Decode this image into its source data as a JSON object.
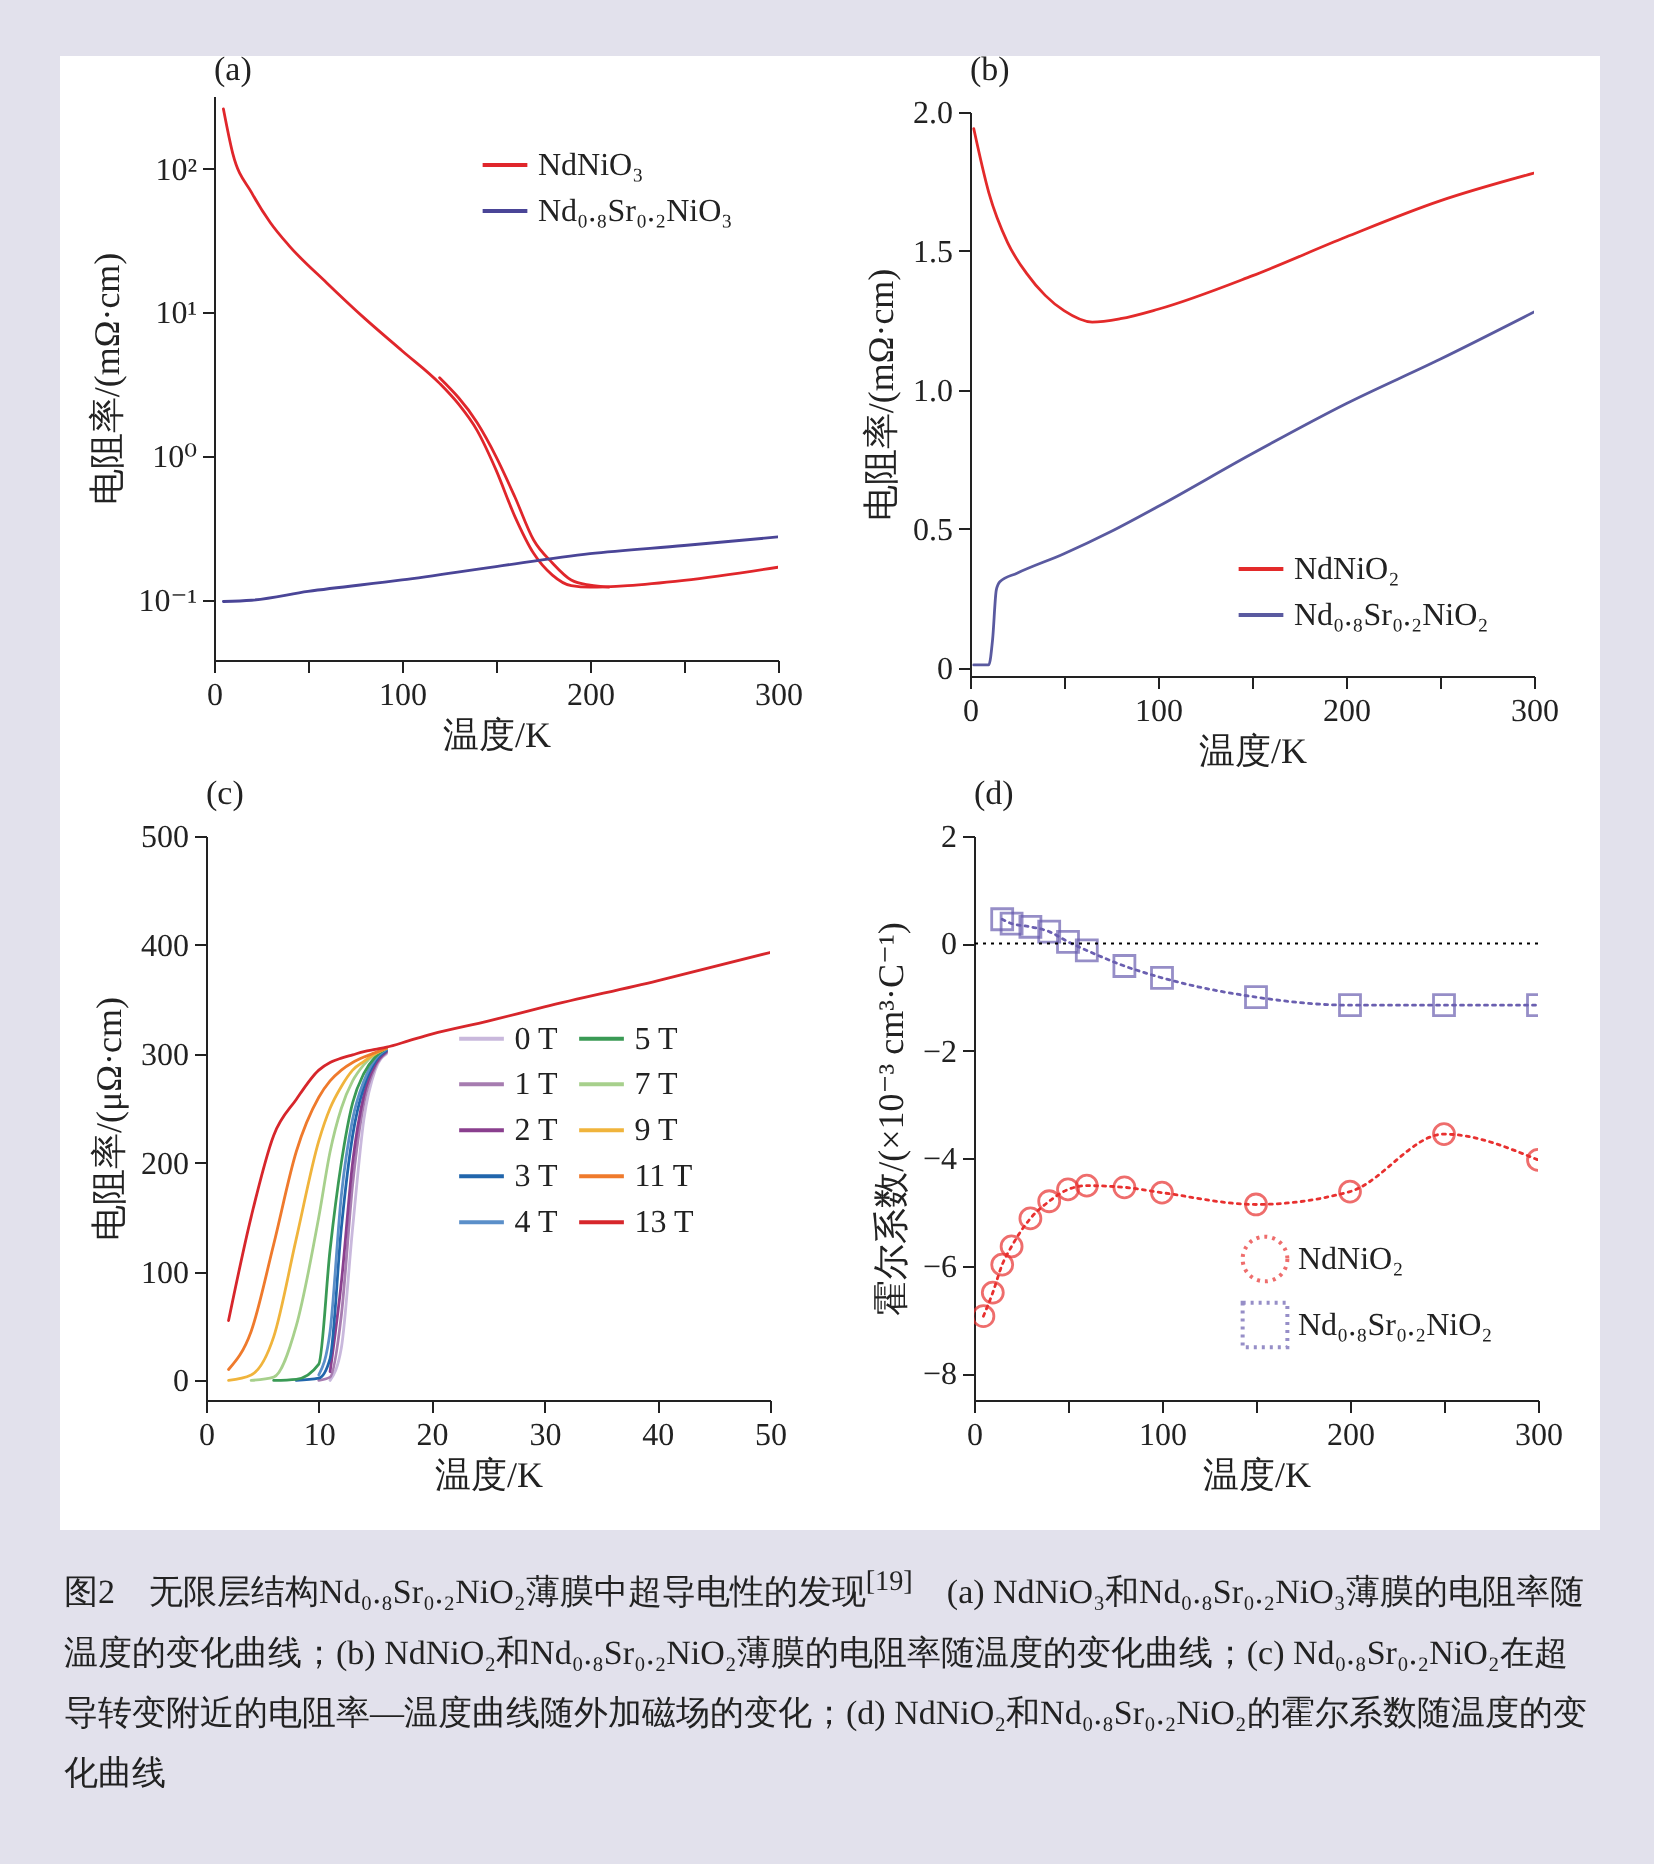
{
  "chart_data": [
    {
      "type": "line",
      "title": "(a)",
      "xlabel": "温度/K",
      "ylabel": "电阻率/(mΩ·cm)",
      "log": "y",
      "legend": "top right",
      "grid": false,
      "xlim": [
        0,
        300
      ],
      "xticks": [
        0,
        {
          "value": 50,
          "label": null
        },
        100,
        {
          "value": 150,
          "label": null
        },
        200,
        {
          "value": 250,
          "label": null
        },
        300
      ],
      "ylim": [
        0.038,
        320
      ],
      "yticks": [
        {
          "value": 100,
          "label": "10²"
        },
        {
          "value": 10,
          "label": "10¹"
        },
        {
          "value": 1,
          "label": "10⁰"
        },
        {
          "value": 0.1,
          "label": "10⁻¹"
        }
      ],
      "series": [
        {
          "name": "NdNiO₃",
          "color": "#e0262b",
          "x": [
            5,
            10,
            20,
            30,
            40,
            60,
            80,
            100,
            120,
            130,
            140,
            150,
            160,
            170,
            180,
            190,
            200,
            220,
            250,
            300
          ],
          "values": [
            260,
            127,
            68,
            42,
            29,
            16,
            9.1,
            5.4,
            3.2,
            2.3,
            1.5,
            0.8,
            0.38,
            0.21,
            0.148,
            0.125,
            0.122,
            0.125,
            0.136,
            0.168
          ]
        },
        {
          "color": "#e0262b",
          "x": [
            120,
            140,
            150,
            160,
            170,
            180,
            190,
            200,
            210
          ],
          "values": [
            3.5,
            1.7,
            0.99,
            0.52,
            0.26,
            0.18,
            0.137,
            0.126,
            0.122
          ]
        },
        {
          "name": "Nd₀.₈Sr₀.₂NiO₃",
          "color": "#4a4597",
          "x": [
            5,
            20,
            50,
            100,
            150,
            200,
            250,
            300
          ],
          "values": [
            0.097,
            0.099,
            0.114,
            0.137,
            0.17,
            0.209,
            0.238,
            0.273
          ]
        }
      ],
      "annotations": [
        "图2　无限层结构Nd₀.₈Sr₀.₂NiO₂薄膜中超导电性的发现$^{[19]}$　(a) NdNiO₃和Nd₀.₈Sr₀.₂NiO₃薄膜的电阻率随温度的变化曲线；(b) NdNiO₂和Nd₀.₈Sr₀.₂NiO₂薄膜的电阻率随温度的变化曲线；(c) Nd₀.₈Sr₀.₂NiO₂在超导转变附近的电阻率—温度曲线随外加磁场的变化；(d) NdNiO₂和Nd₀.₈Sr₀.₂NiO₂的霍尔系数随温度的变化曲线"
      ]
    },
    {
      "type": "line",
      "title": "(b)",
      "xlabel": "温度/K",
      "ylabel": "电阻率/(mΩ·cm)",
      "legend": "bottom right",
      "grid": false,
      "xlim": [
        0,
        300
      ],
      "xticks": [
        0,
        {
          "value": 50,
          "label": null
        },
        100,
        {
          "value": 150,
          "label": null
        },
        200,
        {
          "value": 250,
          "label": null
        },
        300
      ],
      "ylim": [
        -0.03,
        2.0
      ],
      "yticks": [
        0,
        0.5,
        {
          "value": 1,
          "label": "1.0"
        },
        1.5,
        {
          "value": 2,
          "label": "2.0"
        }
      ],
      "series": [
        {
          "name": "NdNiO₂",
          "color": "#e32a2a",
          "x": [
            2,
            10,
            20,
            30,
            40,
            50,
            65,
            80,
            100,
            150,
            200,
            250,
            300
          ],
          "values": [
            1.94,
            1.71,
            1.53,
            1.42,
            1.34,
            1.285,
            1.244,
            1.256,
            1.29,
            1.41,
            1.55,
            1.68,
            1.78
          ]
        },
        {
          "name": "Nd₀.₈Sr₀.₂NiO₂",
          "color": "#5a5aa0",
          "x": [
            2,
            10,
            12,
            14,
            16,
            25,
            50,
            75,
            100,
            150,
            200,
            250,
            300
          ],
          "values": [
            0.01,
            0.01,
            0.1,
            0.28,
            0.31,
            0.34,
            0.41,
            0.49,
            0.58,
            0.77,
            0.95,
            1.11,
            1.28
          ]
        }
      ]
    },
    {
      "type": "line",
      "title": "(c)",
      "xlabel": "温度/K",
      "ylabel": "电阻率/(μΩ·cm)",
      "legend": "right",
      "grid": false,
      "xlim": [
        0,
        50
      ],
      "xticks": [
        0,
        10,
        20,
        30,
        40,
        50
      ],
      "ylim": [
        -18,
        500
      ],
      "yticks": [
        0,
        100,
        200,
        300,
        400,
        500
      ],
      "x": [
        2,
        4,
        6,
        8,
        10,
        11,
        12,
        13,
        14,
        15,
        16,
        18,
        20,
        25,
        30,
        40,
        50
      ],
      "series": [
        {
          "name": "0 T",
          "color": "#c9b8dc",
          "values": [
            null,
            null,
            null,
            null,
            null,
            0,
            30,
            140,
            240,
            285,
            300,
            null,
            null,
            null,
            null,
            null,
            null
          ]
        },
        {
          "name": "1 T",
          "color": "#a67cb0",
          "values": [
            null,
            null,
            null,
            null,
            0,
            3,
            60,
            180,
            255,
            288,
            301,
            null,
            null,
            null,
            null,
            null,
            null
          ]
        },
        {
          "name": "2 T",
          "color": "#8a3f8e",
          "values": [
            null,
            null,
            null,
            null,
            null,
            8,
            90,
            200,
            262,
            290,
            302,
            null,
            null,
            null,
            null,
            null,
            null
          ]
        },
        {
          "name": "3 T",
          "color": "#2166ac",
          "values": [
            null,
            null,
            null,
            0,
            2,
            20,
            140,
            225,
            270,
            293,
            303,
            null,
            null,
            null,
            null,
            null,
            null
          ]
        },
        {
          "name": "4 T",
          "color": "#5b8fc9",
          "values": [
            null,
            null,
            null,
            null,
            5,
            45,
            170,
            240,
            275,
            295,
            304,
            null,
            null,
            null,
            null,
            null,
            null
          ]
        },
        {
          "name": "5 T",
          "color": "#3a9a55",
          "values": [
            null,
            null,
            0,
            1,
            15,
            120,
            200,
            255,
            282,
            297,
            305,
            null,
            null,
            null,
            null,
            null,
            null
          ]
        },
        {
          "name": "7 T",
          "color": "#a7d08c",
          "values": [
            null,
            0,
            3,
            50,
            150,
            210,
            250,
            275,
            290,
            300,
            305,
            null,
            null,
            null,
            null,
            null,
            null
          ]
        },
        {
          "name": "9 T",
          "color": "#f0b43c",
          "values": [
            0,
            5,
            40,
            130,
            220,
            250,
            270,
            285,
            293,
            300,
            305,
            null,
            null,
            null,
            null,
            null,
            null
          ]
        },
        {
          "name": "11 T",
          "color": "#ef7a2c",
          "values": [
            10,
            45,
            125,
            210,
            260,
            275,
            285,
            292,
            297,
            301,
            305,
            null,
            null,
            null,
            null,
            null,
            null
          ]
        },
        {
          "name": "13 T",
          "color": "#d7262b",
          "values": [
            55,
            150,
            225,
            258,
            285,
            292,
            296,
            299,
            302,
            304,
            306,
            312,
            318,
            330,
            343,
            367,
            393
          ]
        }
      ]
    },
    {
      "type": "line",
      "title": "(d)",
      "xlabel": "温度/K",
      "ylabel": "霍尔系数/(×10⁻³ cm³·C⁻¹)",
      "legend": "bottom right",
      "grid": false,
      "xlim": [
        0,
        300
      ],
      "xticks": [
        0,
        {
          "value": 50,
          "label": null
        },
        100,
        {
          "value": 150,
          "label": null
        },
        200,
        {
          "value": 250,
          "label": null
        },
        300
      ],
      "ylim": [
        -8.5,
        2
      ],
      "yticks": [
        2,
        0,
        {
          "value": -2,
          "label": "−2"
        },
        {
          "value": -4,
          "label": "−4"
        },
        {
          "value": -6,
          "label": "−6"
        },
        {
          "value": -8,
          "label": "−8"
        }
      ],
      "ref_lines": [
        {
          "axis": "y",
          "value": 0,
          "color": "#000000",
          "line_style": "dotted"
        }
      ],
      "series": [
        {
          "name": "NdNiO₂",
          "color": "#e8302f",
          "marker": "circle",
          "line_style": "dotted",
          "x": [
            5,
            10,
            15,
            20,
            30,
            40,
            50,
            60,
            80,
            100,
            150,
            200,
            250,
            300
          ],
          "values": [
            -6.94,
            -6.5,
            -5.98,
            -5.64,
            -5.12,
            -4.8,
            -4.58,
            -4.51,
            -4.54,
            -4.64,
            -4.86,
            -4.62,
            -3.55,
            -4.03
          ]
        },
        {
          "name": "Nd₀.₈Sr₀.₂NiO₂",
          "color": "#6a5fb0",
          "marker": "square",
          "line_style": "dotted",
          "x": [
            15,
            20,
            30,
            40,
            50,
            60,
            80,
            100,
            150,
            200,
            250,
            300
          ],
          "values": [
            0.45,
            0.37,
            0.31,
            0.22,
            0.03,
            -0.13,
            -0.42,
            -0.64,
            -1.0,
            -1.15,
            -1.15,
            -1.15
          ]
        }
      ]
    }
  ]
}
